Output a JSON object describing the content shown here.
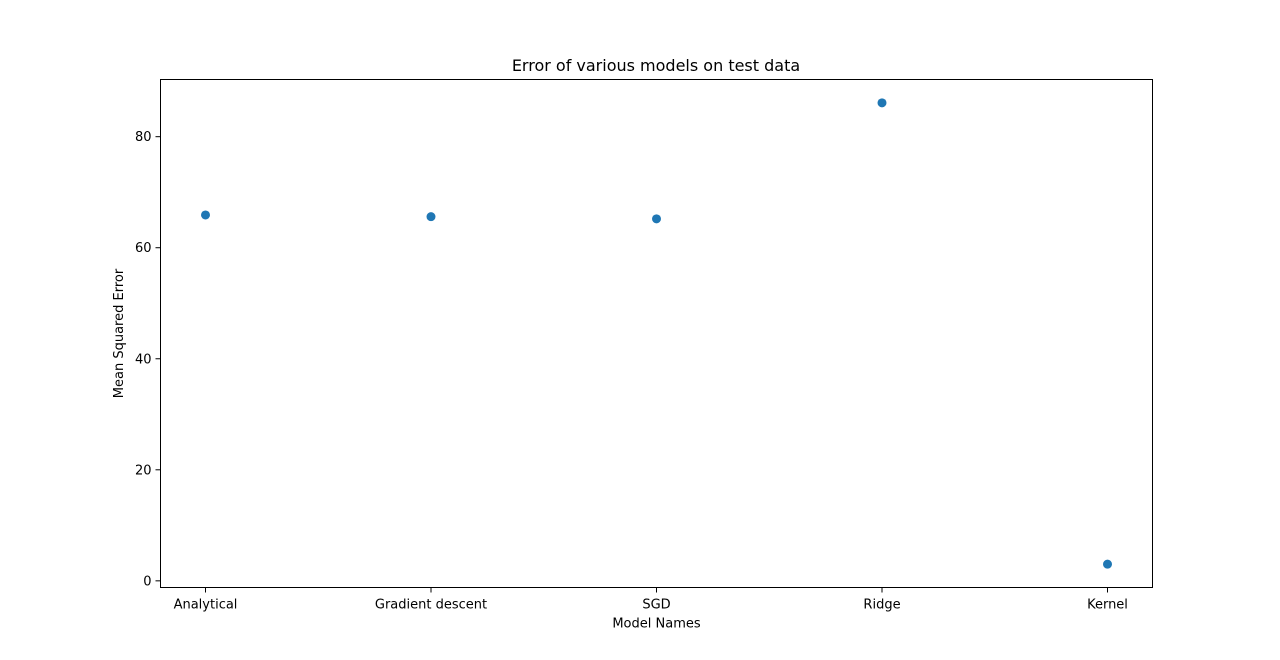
{
  "chart_data": {
    "type": "scatter",
    "title": "Error of various models on test data",
    "xlabel": "Model Names",
    "ylabel": "Mean Squared Error",
    "categories": [
      "Analytical",
      "Gradient descent",
      "SGD",
      "Ridge",
      "Kernel"
    ],
    "values": [
      65.9,
      65.6,
      65.2,
      86.1,
      3.0
    ],
    "ylim": [
      -1.2,
      90.3
    ],
    "yticks": [
      0,
      20,
      40,
      60,
      80
    ],
    "grid": false,
    "marker_color": "#1f77b4"
  }
}
